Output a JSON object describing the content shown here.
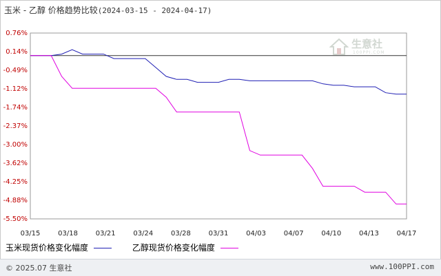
{
  "header": {
    "title": "玉米 - 乙醇 价格趋势比较",
    "date_range": "(2024-03-15 - 2024-04-17)"
  },
  "watermark": {
    "brand": "生意社",
    "sub": "100PPI.COM"
  },
  "footer": {
    "copyright": "© 2025.07 生意社",
    "site": "www.100PPI.com"
  },
  "chart_data": {
    "type": "line",
    "title": "玉米 - 乙醇 价格趋势比较",
    "xlabel": "",
    "ylabel": "",
    "yticks": [
      "0.76%",
      "0.14%",
      "-0.49%",
      "-1.12%",
      "-1.74%",
      "-2.37%",
      "-3.00%",
      "-3.62%",
      "-4.25%",
      "-4.88%",
      "-5.50%"
    ],
    "ylim": [
      -5.5,
      0.76
    ],
    "xticks": [
      "03/15",
      "03/18",
      "03/21",
      "03/24",
      "03/28",
      "03/31",
      "04/03",
      "04/07",
      "04/10",
      "04/13",
      "04/17"
    ],
    "baseline": 0,
    "grid": true,
    "legend_position": "bottom",
    "series": [
      {
        "name": "玉米现货价格变化幅度",
        "color": "#1f1fb4",
        "points": [
          [
            0,
            0
          ],
          [
            2,
            0
          ],
          [
            3,
            0.05
          ],
          [
            4,
            0.2
          ],
          [
            5,
            0.05
          ],
          [
            6,
            0.05
          ],
          [
            7,
            0.05
          ],
          [
            8,
            -0.1
          ],
          [
            9,
            -0.1
          ],
          [
            10,
            -0.1
          ],
          [
            11,
            -0.1
          ],
          [
            12,
            -0.4
          ],
          [
            13,
            -0.7
          ],
          [
            14,
            -0.8
          ],
          [
            15,
            -0.8
          ],
          [
            16,
            -0.9
          ],
          [
            17,
            -0.9
          ],
          [
            18,
            -0.9
          ],
          [
            19,
            -0.8
          ],
          [
            20,
            -0.8
          ],
          [
            21,
            -0.85
          ],
          [
            22,
            -0.85
          ],
          [
            23,
            -0.85
          ],
          [
            24,
            -0.85
          ],
          [
            25,
            -0.85
          ],
          [
            26,
            -0.85
          ],
          [
            27,
            -0.85
          ],
          [
            28,
            -0.95
          ],
          [
            29,
            -1.0
          ],
          [
            30,
            -1.0
          ],
          [
            31,
            -1.05
          ],
          [
            32,
            -1.05
          ],
          [
            33,
            -1.05
          ],
          [
            34,
            -1.25
          ],
          [
            35,
            -1.3
          ],
          [
            36,
            -1.3
          ]
        ]
      },
      {
        "name": "乙醇现货价格变化幅度",
        "color": "#e000e0",
        "points": [
          [
            0,
            0
          ],
          [
            2,
            0
          ],
          [
            3,
            -0.7
          ],
          [
            4,
            -1.1
          ],
          [
            5,
            -1.1
          ],
          [
            6,
            -1.1
          ],
          [
            7,
            -1.1
          ],
          [
            8,
            -1.1
          ],
          [
            9,
            -1.1
          ],
          [
            10,
            -1.1
          ],
          [
            11,
            -1.1
          ],
          [
            12,
            -1.1
          ],
          [
            13,
            -1.4
          ],
          [
            14,
            -1.9
          ],
          [
            15,
            -1.9
          ],
          [
            16,
            -1.9
          ],
          [
            17,
            -1.9
          ],
          [
            18,
            -1.9
          ],
          [
            19,
            -1.9
          ],
          [
            20,
            -1.9
          ],
          [
            21,
            -3.2
          ],
          [
            22,
            -3.35
          ],
          [
            23,
            -3.35
          ],
          [
            24,
            -3.35
          ],
          [
            25,
            -3.35
          ],
          [
            26,
            -3.35
          ],
          [
            27,
            -3.8
          ],
          [
            28,
            -4.4
          ],
          [
            29,
            -4.4
          ],
          [
            30,
            -4.4
          ],
          [
            31,
            -4.4
          ],
          [
            32,
            -4.6
          ],
          [
            33,
            -4.6
          ],
          [
            34,
            -4.6
          ],
          [
            35,
            -5.0
          ],
          [
            36,
            -5.0
          ]
        ]
      }
    ]
  }
}
